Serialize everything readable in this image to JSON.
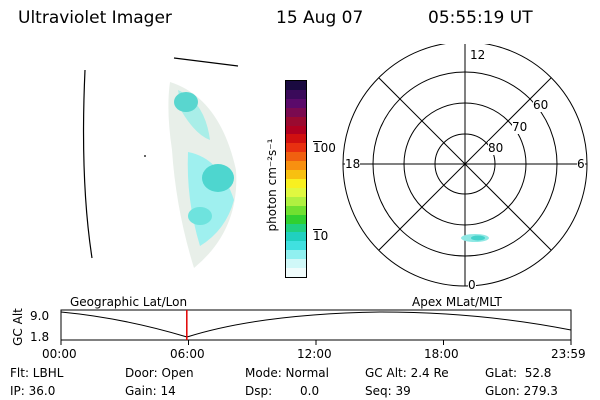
{
  "header": {
    "instrument": "Ultraviolet Imager",
    "date": "15 Aug 07",
    "time": "05:55:19 UT"
  },
  "colorbar": {
    "unit_label": "photon cm⁻²s⁻¹",
    "ticks": [
      "100",
      "10"
    ],
    "colors_top_to_bottom": [
      "#1a0a40",
      "#3a0a5a",
      "#5a0a6a",
      "#7a0a50",
      "#9a0a30",
      "#b00020",
      "#d01010",
      "#e83010",
      "#f06010",
      "#f89010",
      "#f8c010",
      "#f8f020",
      "#e0f840",
      "#b0f040",
      "#70e030",
      "#30d030",
      "#20d080",
      "#20d0c0",
      "#40e0e0",
      "#90f0f0",
      "#d0f8f8",
      "#f0fcfc"
    ]
  },
  "polar": {
    "mlt_labels": [
      "12",
      "18",
      "6",
      "0"
    ],
    "lat_labels": [
      "60",
      "70",
      "80"
    ]
  },
  "altitude_plot": {
    "title_left": "Geographic Lat/Lon",
    "title_right": "Apex MLat/MLT",
    "ylabel": "GC Alt",
    "ymax_label": "9.0",
    "ymin_label": "1.8",
    "x_ticks": [
      "00:00",
      "06:00",
      "12:00",
      "18:00",
      "23:59"
    ],
    "marker_hour": 5.92
  },
  "info": {
    "flt": "Flt: LBHL",
    "ip": "IP: 36.0",
    "door": "Door: Open",
    "gain": "Gain: 14",
    "mode": "Mode: Normal",
    "dsp_label": "Dsp:",
    "dsp_value": "0.0",
    "gc_alt": "GC Alt: 2.4 Re",
    "seq": "Seq: 39",
    "glat": "GLat:  52.8",
    "glon": "GLon: 279.3"
  }
}
